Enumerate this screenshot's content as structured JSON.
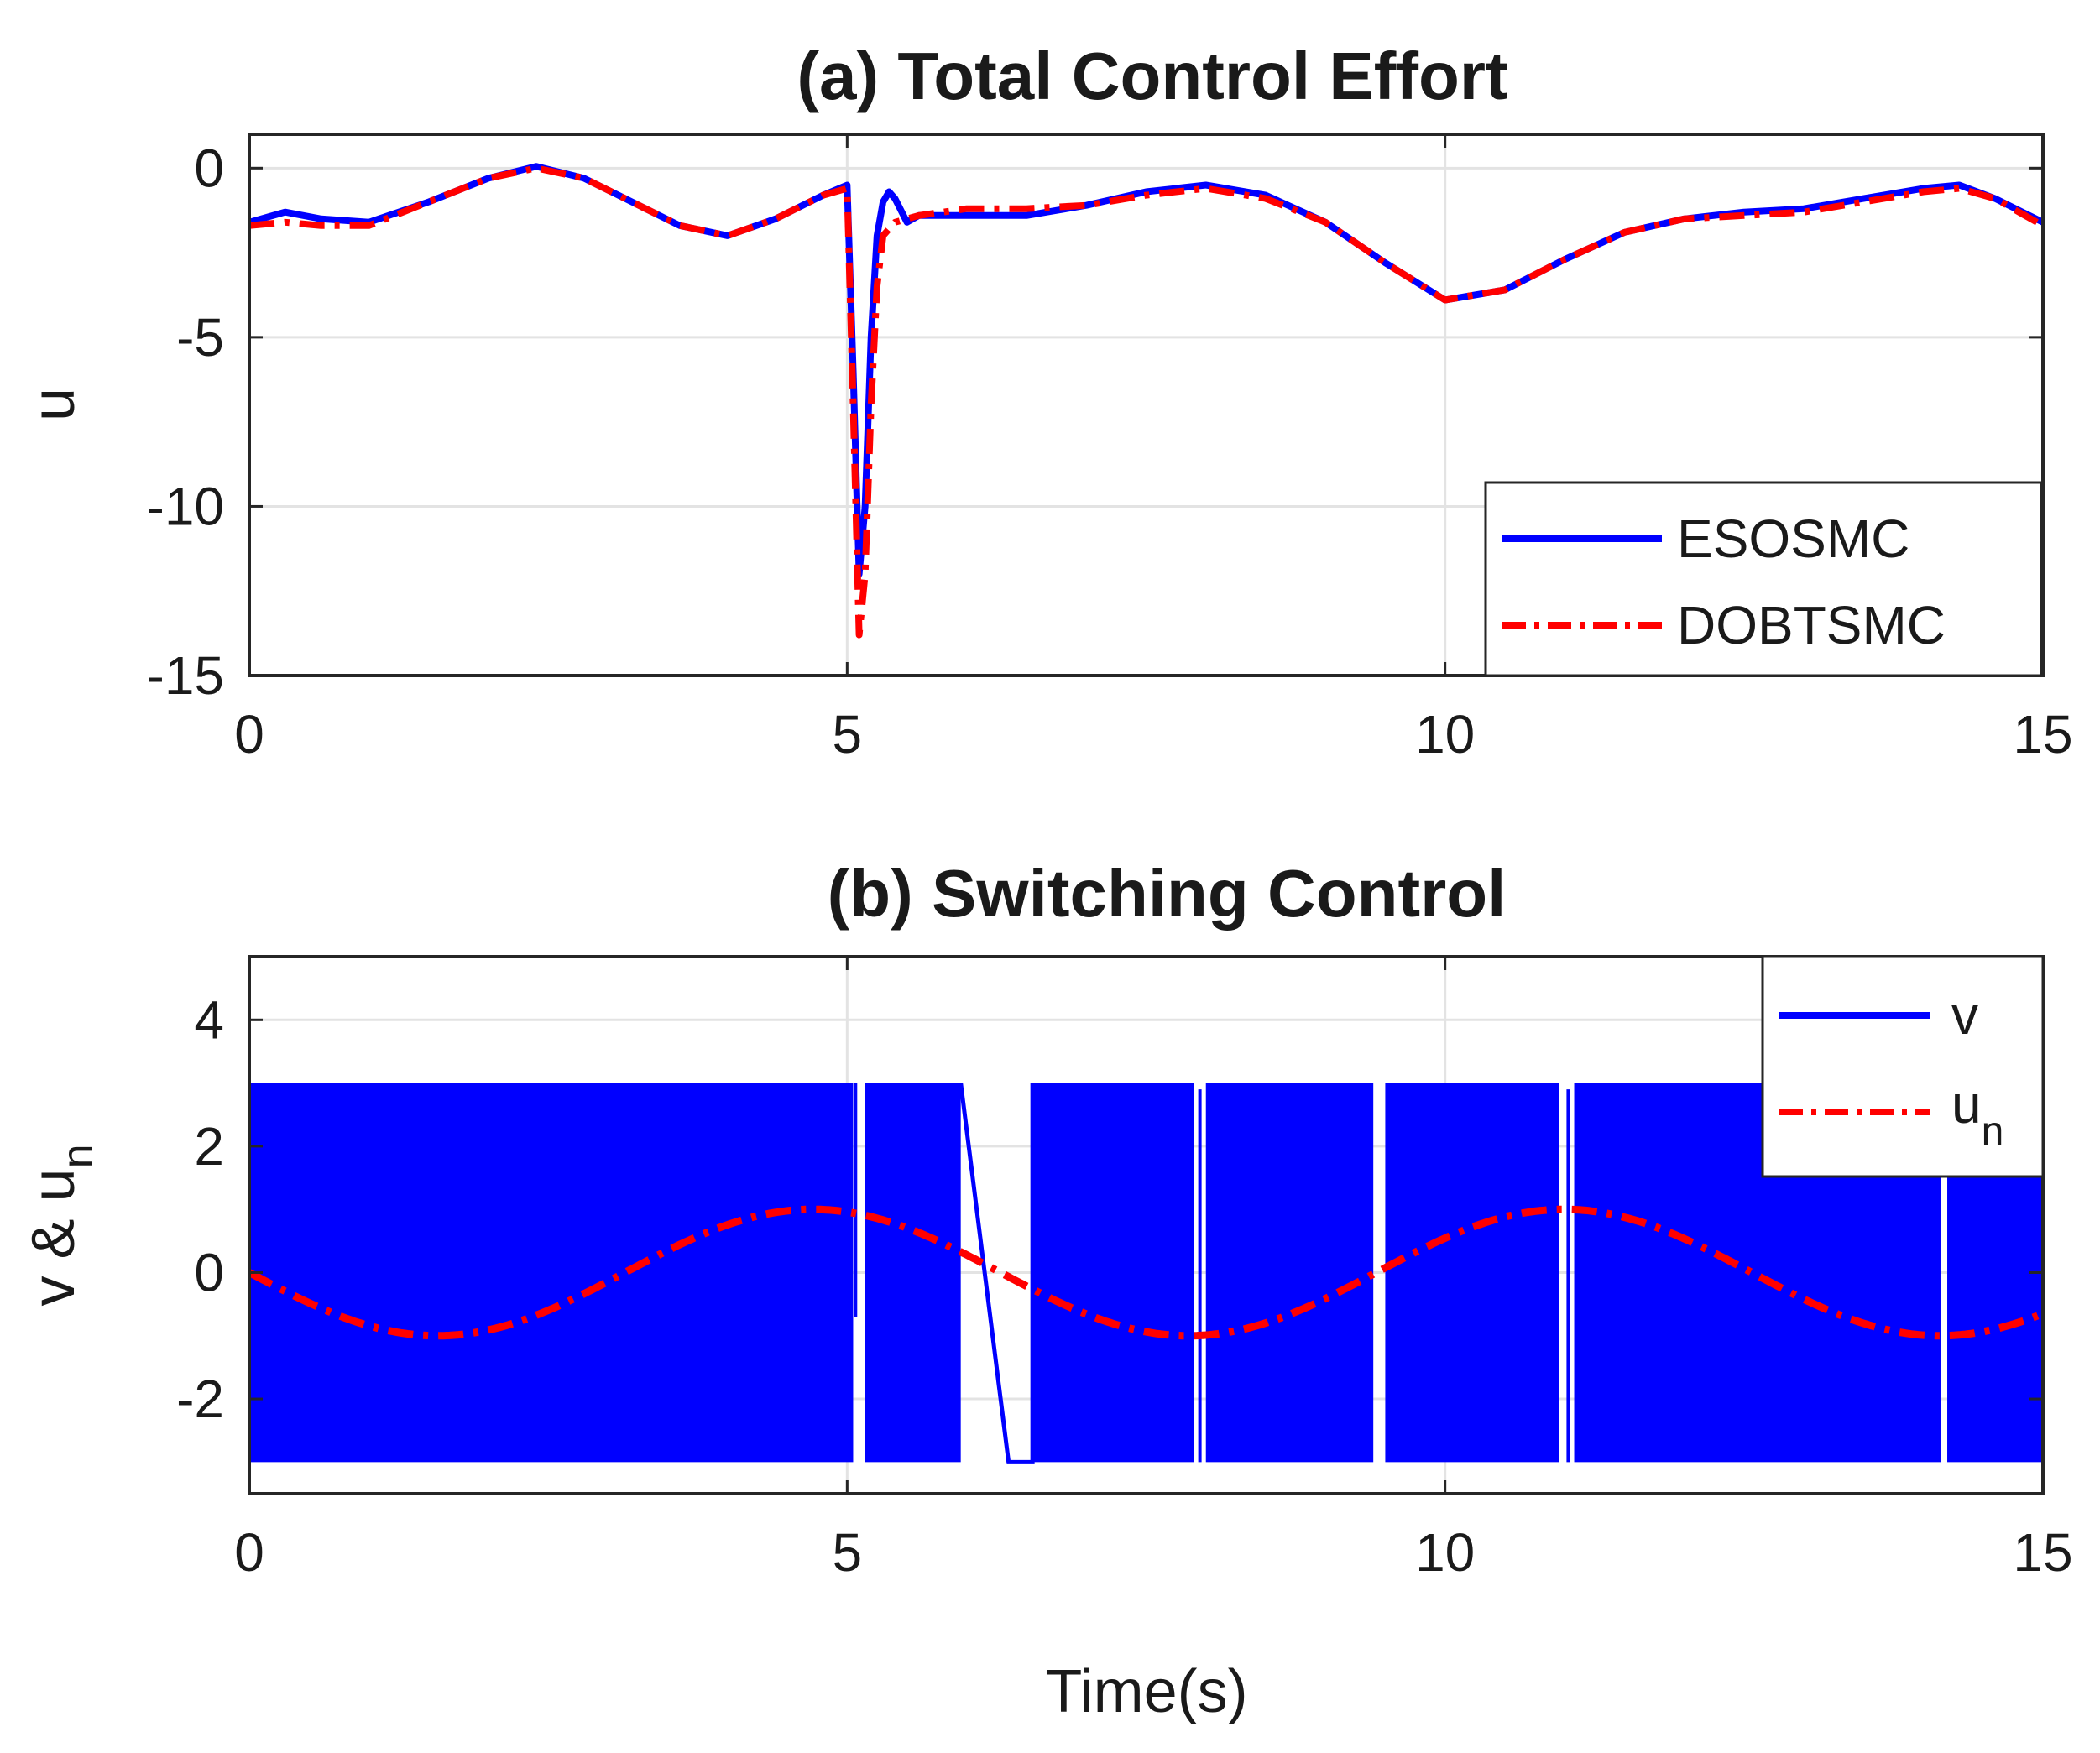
{
  "chart_data": [
    {
      "type": "line",
      "title": "(a) Total Control Effort",
      "xlabel": "",
      "ylabel": "u",
      "xlim": [
        0,
        15
      ],
      "ylim": [
        -15,
        1
      ],
      "xticks": [
        "0",
        "5",
        "10",
        "15"
      ],
      "yticks": [
        "0",
        "-5",
        "-10",
        "-15"
      ],
      "grid": true,
      "legend_position": "bottom-right",
      "series": [
        {
          "name": "ESOSMC",
          "color": "#0000ff",
          "style": "solid",
          "x": [
            0,
            0.3,
            0.6,
            1.0,
            1.5,
            2.0,
            2.4,
            2.8,
            3.2,
            3.6,
            4.0,
            4.4,
            4.8,
            5.0,
            5.05,
            5.1,
            5.15,
            5.2,
            5.25,
            5.3,
            5.35,
            5.4,
            5.5,
            5.6,
            6.0,
            6.5,
            7.0,
            7.5,
            8.0,
            8.5,
            9.0,
            9.5,
            10.0,
            10.5,
            11.0,
            11.5,
            12.0,
            12.5,
            13.0,
            13.5,
            14.0,
            14.3,
            14.6,
            15.0
          ],
          "y": [
            -1.6,
            -1.3,
            -1.5,
            -1.6,
            -1.0,
            -0.3,
            0.05,
            -0.3,
            -1.0,
            -1.7,
            -2.0,
            -1.5,
            -0.8,
            -0.5,
            -6.0,
            -12.0,
            -10.0,
            -5.0,
            -2.0,
            -1.0,
            -0.7,
            -0.9,
            -1.6,
            -1.4,
            -1.4,
            -1.4,
            -1.1,
            -0.7,
            -0.5,
            -0.8,
            -1.6,
            -2.8,
            -3.9,
            -3.6,
            -2.7,
            -1.9,
            -1.5,
            -1.3,
            -1.2,
            -0.9,
            -0.6,
            -0.5,
            -0.9,
            -1.6
          ]
        },
        {
          "name": "DOBTSMC",
          "color": "#ff0000",
          "style": "dashdot",
          "x": [
            0,
            0.3,
            0.6,
            1.0,
            1.5,
            2.0,
            2.4,
            2.8,
            3.2,
            3.6,
            4.0,
            4.4,
            4.8,
            5.0,
            5.05,
            5.1,
            5.15,
            5.2,
            5.25,
            5.3,
            5.4,
            5.5,
            5.6,
            6.0,
            6.5,
            7.0,
            7.5,
            8.0,
            8.5,
            9.0,
            9.5,
            10.0,
            10.5,
            11.0,
            11.5,
            12.0,
            12.5,
            13.0,
            13.5,
            14.0,
            14.3,
            14.6,
            15.0
          ],
          "y": [
            -1.7,
            -1.6,
            -1.7,
            -1.7,
            -1.0,
            -0.3,
            0.0,
            -0.3,
            -1.0,
            -1.7,
            -2.0,
            -1.5,
            -0.8,
            -0.6,
            -7.0,
            -13.8,
            -12.0,
            -7.0,
            -3.5,
            -2.0,
            -1.6,
            -1.5,
            -1.4,
            -1.2,
            -1.2,
            -1.1,
            -0.8,
            -0.6,
            -0.9,
            -1.6,
            -2.8,
            -3.9,
            -3.6,
            -2.7,
            -1.9,
            -1.5,
            -1.4,
            -1.3,
            -1.0,
            -0.7,
            -0.6,
            -0.9,
            -1.7
          ]
        }
      ]
    },
    {
      "type": "line",
      "title": "(b) Switching Control",
      "xlabel": "Time(s)",
      "ylabel": "v & u",
      "ylabel_subscript": "n",
      "xlim": [
        0,
        15
      ],
      "ylim": [
        -3.5,
        5
      ],
      "xticks": [
        "0",
        "5",
        "10",
        "15"
      ],
      "yticks": [
        "4",
        "2",
        "0",
        "-2"
      ],
      "grid": true,
      "legend_position": "top-right",
      "series": [
        {
          "name": "v",
          "color": "#0000ff",
          "style": "solid",
          "switching_amplitude": [
            -3,
            3
          ],
          "note": "high-frequency switching between -3 and 3; blocks list continuous switching intervals",
          "blocks": [
            [
              0,
              5.05
            ],
            [
              5.15,
              5.95
            ],
            [
              6.55,
              7.9
            ],
            [
              8.0,
              9.4
            ],
            [
              9.5,
              10.95
            ],
            [
              11.08,
              14.15
            ],
            [
              14.2,
              15.0
            ]
          ],
          "gap_steps": [
            [
              5.95,
              6.35,
              6.55
            ]
          ],
          "spikes": [
            [
              7.95,
              2.9
            ],
            [
              11.03,
              2.9
            ],
            [
              5.07,
              -0.7
            ]
          ]
        },
        {
          "name": "u",
          "name_subscript": "n",
          "color": "#ff0000",
          "style": "dashdot",
          "function": "sin",
          "amplitude": 1,
          "period_s": 6.283,
          "phase_rad": 3.1416
        }
      ]
    }
  ]
}
